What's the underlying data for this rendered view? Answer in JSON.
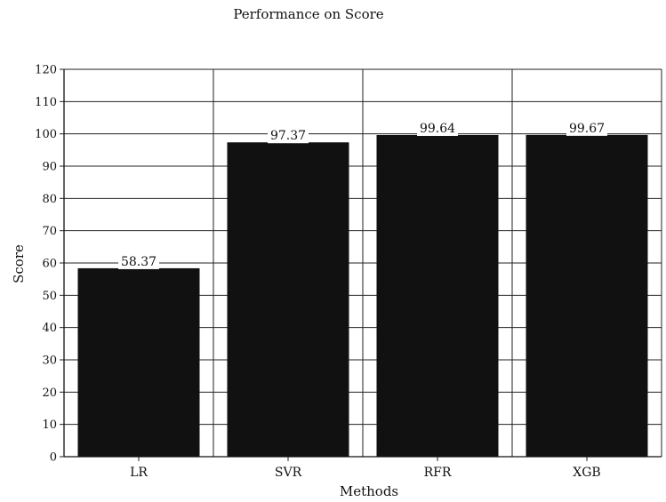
{
  "chart_data": {
    "type": "bar",
    "title": "Performance on Score",
    "xlabel": "Methods",
    "ylabel": "Score",
    "categories": [
      "LR",
      "SVR",
      "RFR",
      "XGB"
    ],
    "values": [
      58.37,
      97.37,
      99.64,
      99.67
    ],
    "data_labels": [
      "58.37",
      "97.37",
      "99.64",
      "99.67"
    ],
    "ylim": [
      0,
      120
    ],
    "yticks": [
      "0",
      "10",
      "20",
      "30",
      "40",
      "50",
      "60",
      "70",
      "80",
      "90",
      "100",
      "110",
      "120"
    ],
    "grid": "horizontal-and-vertical",
    "legend": "none",
    "bar_color": "#111111"
  }
}
